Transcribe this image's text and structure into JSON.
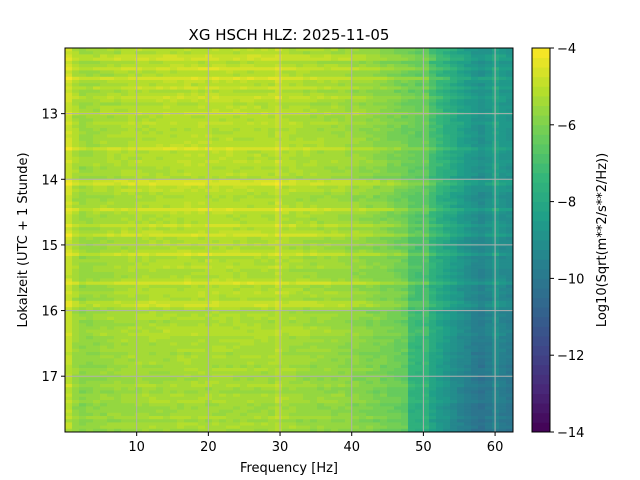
{
  "chart_data": {
    "type": "heatmap",
    "title": "XG HSCH  HLZ: 2025-11-05",
    "xlabel": "Frequency [Hz]",
    "ylabel": "Lokalzeit (UTC + 1 Stunde)",
    "x_ticks": [
      10,
      20,
      30,
      40,
      50,
      60
    ],
    "x_tick_labels": [
      "10",
      "20",
      "30",
      "40",
      "50",
      "60"
    ],
    "xlim": [
      0.0,
      62.5
    ],
    "y_ticks": [
      13,
      14,
      15,
      16,
      17
    ],
    "y_tick_labels": [
      "13",
      "14",
      "15",
      "16",
      "17"
    ],
    "ylim": [
      17.85,
      12.0
    ],
    "y_inverted": true,
    "grid": true,
    "colormap": "viridis",
    "colorbar": {
      "label": "Log10(Sqrt(m**2/s**2/Hz))",
      "range": [
        -14,
        -4
      ],
      "ticks": [
        -14,
        -12,
        -10,
        -8,
        -6,
        -4
      ],
      "tick_labels": [
        "−14",
        "−12",
        "−10",
        "−8",
        "−6",
        "−4"
      ],
      "levels": 40
    },
    "profile_by_frequency": {
      "frequency_hz": [
        0.5,
        2,
        5,
        10,
        20,
        30,
        40,
        45,
        50,
        52,
        55,
        58,
        60,
        62
      ],
      "log10_amplitude": [
        -4.8,
        -5.6,
        -5.4,
        -5.2,
        -5.1,
        -5.2,
        -5.5,
        -5.9,
        -6.5,
        -7.3,
        -8.2,
        -9.0,
        -8.5,
        -8.8
      ]
    },
    "bright_bands_local_time": [
      12.15,
      12.3,
      12.45,
      12.6,
      12.75,
      13.0,
      13.55,
      14.05,
      14.45,
      14.7,
      14.85,
      15.15,
      15.6,
      15.9
    ],
    "strong_lines_hz": [
      30,
      50,
      60
    ]
  }
}
